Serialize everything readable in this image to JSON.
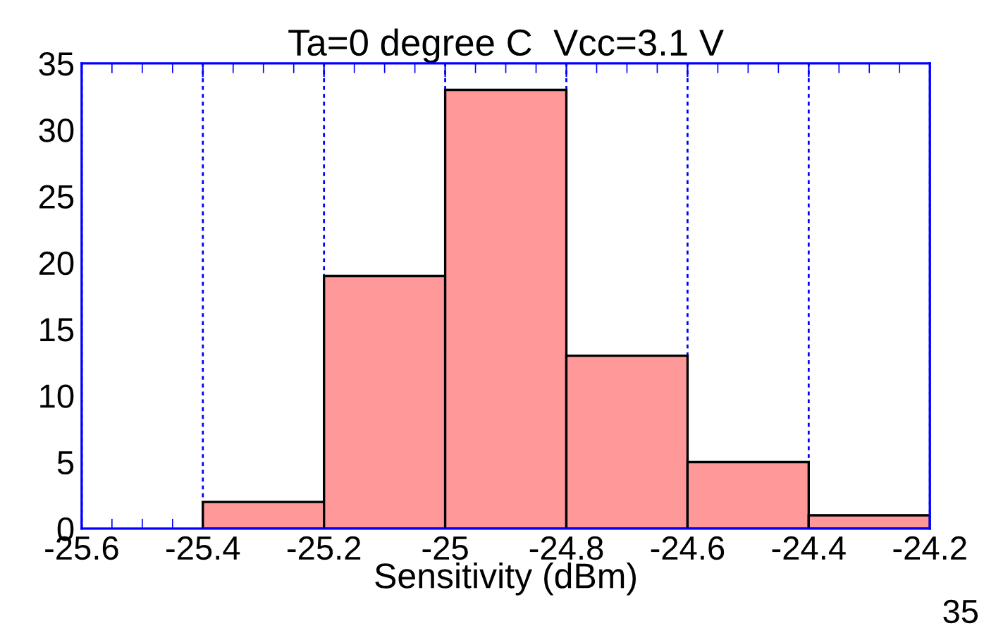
{
  "chart_data": {
    "type": "histogram",
    "title": "Ta=0 degree C  Vcc=3.1 V",
    "xlabel": "Sensitivity (dBm)",
    "bins": [
      -25.4,
      -25.2,
      -25.0,
      -24.8,
      -24.6,
      -24.4,
      -24.2
    ],
    "values": [
      2,
      19,
      33,
      13,
      5,
      1
    ],
    "color": "#ff9999",
    "xlim": [
      -25.6,
      -24.2
    ],
    "xticks": [
      -25.6,
      -25.4,
      -25.2,
      -25,
      -24.8,
      -24.6,
      -24.4,
      -24.2
    ],
    "ylim": [
      0,
      35
    ],
    "yticks": [
      0,
      5,
      10,
      15,
      20,
      25,
      30,
      35
    ],
    "grid": "x",
    "annotations": [
      "35"
    ]
  }
}
